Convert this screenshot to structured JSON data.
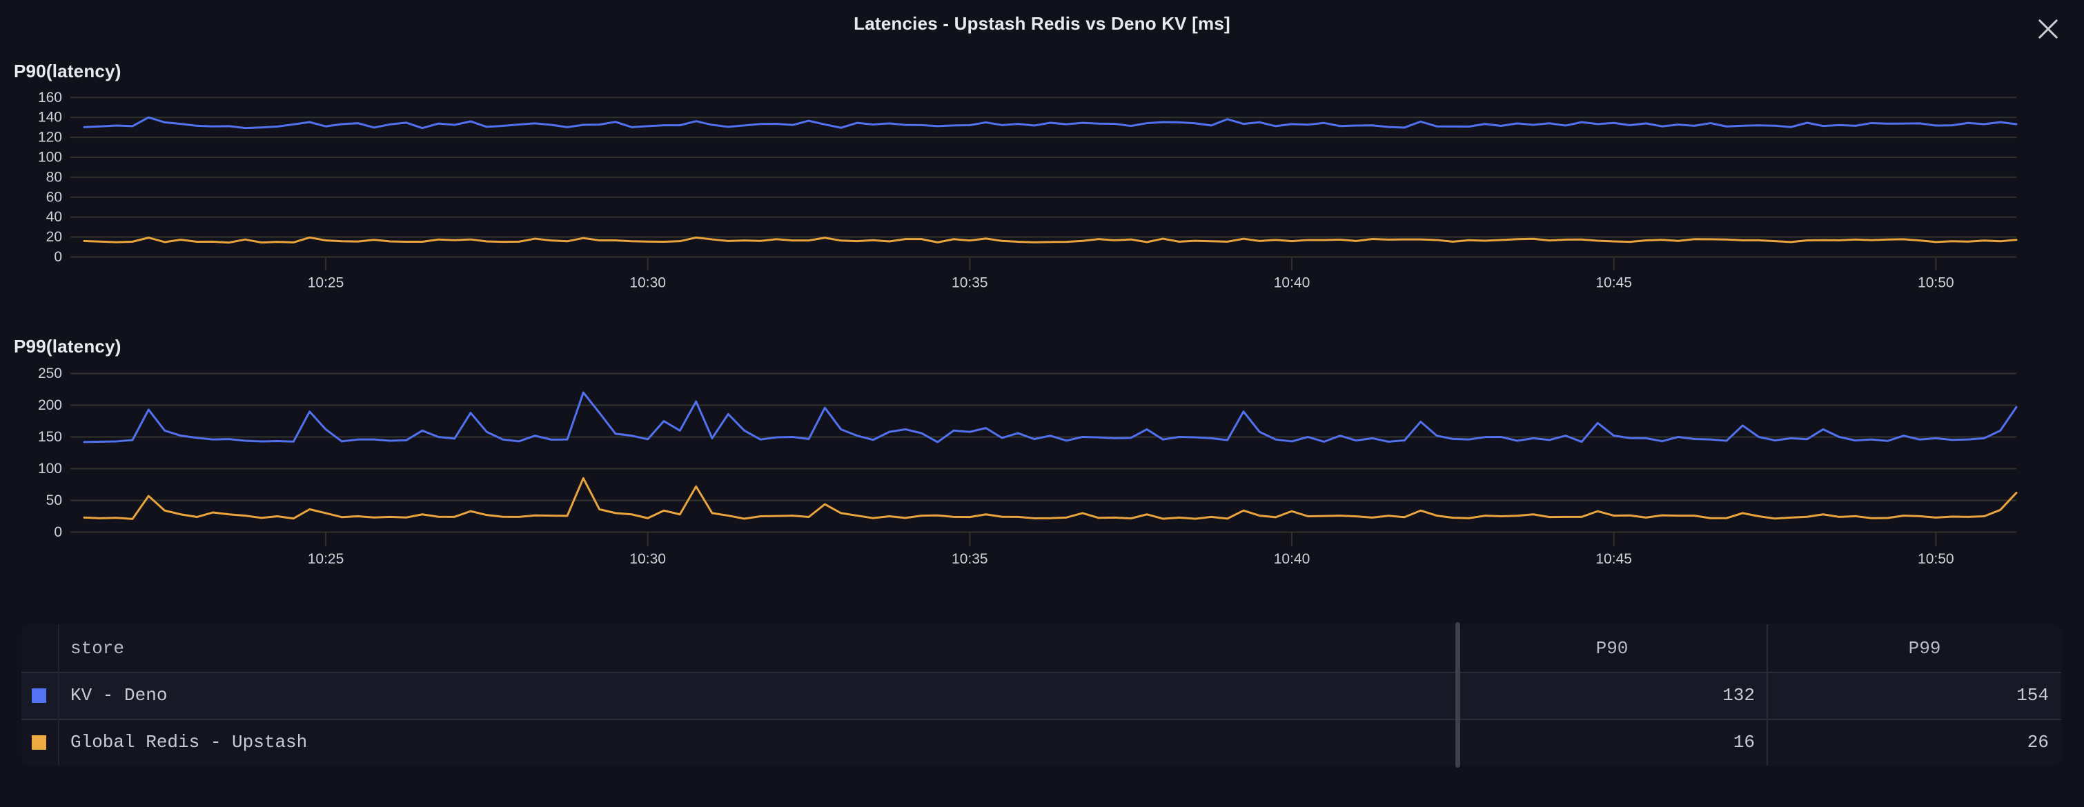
{
  "header": {
    "title": "Latencies - Upstash Redis vs Deno KV [ms]"
  },
  "colors": {
    "background": "#10111b",
    "title_text": "#e8eaf0",
    "axis_label": "#cfd2da",
    "gridline": "#31322c",
    "kv_deno": "#5271ef",
    "redis_upstash": "#e9a43e",
    "kv_deno_swatch": "#5472f4",
    "redis_upstash_swatch": "#eda942",
    "table_text": "#c9ccd3",
    "close_icon": "#c9ccd4"
  },
  "chart_data": [
    {
      "type": "line",
      "title": "P90(latency)",
      "ylim": [
        0,
        160
      ],
      "y_ticks": [
        0,
        20,
        40,
        60,
        80,
        100,
        120,
        140,
        160
      ],
      "x_tick_labels": [
        "10:25",
        "10:30",
        "10:35",
        "10:40",
        "10:45",
        "10:50"
      ],
      "time_start": "10:21:15",
      "time_step_seconds": 15,
      "grid": true,
      "legend_position": "table-below",
      "series": [
        {
          "name": "KV - Deno",
          "color": "#5271ef",
          "values": [
            130.2,
            131,
            131.8,
            131.2,
            140,
            135,
            133.5,
            131.6,
            131,
            131.2,
            129.3,
            129.9,
            130.8,
            133.0,
            135.3,
            131.0,
            133.2,
            134.2,
            129.8,
            133.0,
            134.7,
            129.3,
            133.8,
            132.5,
            136,
            130.5,
            131.5,
            132.9,
            134,
            132.5,
            130.2,
            132.5,
            132.8,
            135.5,
            130.2,
            131.2,
            132.1,
            132.1,
            136.2,
            132.5,
            130.5,
            131.9,
            133.4,
            133.6,
            132.4,
            136.6,
            132.9,
            129.6,
            134.5,
            132.9,
            134,
            132.4,
            132.3,
            131.2,
            131.9,
            132.2,
            135,
            132.3,
            133.5,
            131.8,
            134.6,
            133.1,
            134.5,
            133.7,
            133.6,
            131.4,
            134.2,
            135.3,
            135,
            134.1,
            131.9,
            138.2,
            133.5,
            135.1,
            131.2,
            133.3,
            132.7,
            134.4,
            131.3,
            131.8,
            132,
            130.4,
            129.8,
            135.8,
            131.0,
            130.9,
            130.8,
            133.4,
            131.5,
            134,
            132.5,
            134.1,
            131.8,
            135.2,
            133.3,
            134.4,
            132.2,
            134.0,
            131,
            132.8,
            131.6,
            134.2,
            130.9,
            131.7,
            132,
            131.7,
            130.3,
            134.6,
            131.4,
            132.3,
            131.6,
            134.3,
            133.7,
            133.8,
            134.0,
            131.8,
            132,
            134.4,
            133.2,
            135.2,
            133.2
          ]
        },
        {
          "name": "Global Redis - Upstash",
          "color": "#e9a43e",
          "values": [
            16,
            15.4,
            14.8,
            15.3,
            19.3,
            14.9,
            17.3,
            15.2,
            15.3,
            14.4,
            17.5,
            14.5,
            15.1,
            14.6,
            19.5,
            16.6,
            15.7,
            15.5,
            17.2,
            15.6,
            15.2,
            15.2,
            17.5,
            16.9,
            17.6,
            15.6,
            15.1,
            15.3,
            18.3,
            16.5,
            15.7,
            18.9,
            16.6,
            16.6,
            15.7,
            15.4,
            15.2,
            15.8,
            19.4,
            17.6,
            16,
            16.5,
            16.1,
            17.8,
            16.5,
            16.5,
            19.2,
            16.4,
            15.8,
            16.8,
            15.6,
            17.9,
            17.9,
            14.6,
            17.8,
            16.5,
            18.4,
            16.1,
            15.2,
            14.7,
            15,
            15.1,
            16.1,
            17.9,
            16.7,
            17.6,
            14.9,
            18.3,
            15.3,
            16.2,
            15.7,
            15.3,
            18.2,
            16.0,
            17.1,
            15.8,
            17.0,
            17.0,
            17.4,
            16.0,
            18,
            17.4,
            17.6,
            17.6,
            17.0,
            15.3,
            16.8,
            16.3,
            17.0,
            17.8,
            18.2,
            16.5,
            17.4,
            17.5,
            16.3,
            15.6,
            15.1,
            16.6,
            17.2,
            16.1,
            17.8,
            17.7,
            17.5,
            16.7,
            16.7,
            15.8,
            15.0,
            16.6,
            16.9,
            16.7,
            17.5,
            16.9,
            17.5,
            17.7,
            16.5,
            15,
            15.7,
            15.4,
            16.4,
            15.7,
            17.2
          ]
        }
      ]
    },
    {
      "type": "line",
      "title": "P99(latency)",
      "ylim": [
        0,
        250
      ],
      "y_ticks": [
        0,
        50,
        100,
        150,
        200,
        250
      ],
      "x_tick_labels": [
        "10:25",
        "10:30",
        "10:35",
        "10:40",
        "10:45",
        "10:50"
      ],
      "time_start": "10:21:15",
      "time_step_seconds": 15,
      "grid": true,
      "legend_position": "table-below",
      "series": [
        {
          "name": "KV - Deno",
          "color": "#5271ef",
          "values": [
            142,
            142.5,
            143,
            145.1,
            193,
            160,
            152,
            148.6,
            146,
            146.6,
            144,
            142.9,
            143.5,
            142.6,
            190,
            162,
            143.1,
            146,
            146.1,
            144,
            144.8,
            160,
            150,
            147.4,
            188,
            158,
            146,
            143.1,
            152,
            145.8,
            146,
            220,
            188,
            155,
            152,
            146.4,
            175,
            160,
            206,
            148,
            186,
            160,
            146,
            149.4,
            150,
            146.7,
            196,
            162,
            152,
            145.4,
            158,
            162,
            156,
            141.9,
            160,
            158,
            164,
            148.5,
            156,
            146.6,
            152,
            144.2,
            150,
            149.3,
            148,
            148.5,
            162,
            146.0,
            150,
            149.4,
            148,
            145.1,
            190,
            158,
            146,
            143.0,
            150,
            142.5,
            152,
            144.4,
            148,
            142.5,
            144.6,
            174,
            152,
            146.9,
            146,
            149.8,
            150,
            144.0,
            148,
            145.2,
            152,
            142.3,
            172,
            152,
            148.2,
            148,
            143.3,
            150,
            146.7,
            146,
            144.0,
            168,
            150,
            144.6,
            148,
            146.5,
            162,
            150,
            144.4,
            146,
            143.7,
            152,
            145.9,
            148,
            145.4,
            146,
            148,
            160,
            197
          ]
        },
        {
          "name": "Global Redis - Upstash",
          "color": "#e9a43e",
          "values": [
            23,
            21.9,
            22.5,
            20.8,
            57,
            34,
            28,
            23.9,
            31,
            28,
            26,
            22.5,
            25,
            21.5,
            36,
            30,
            23.7,
            25,
            23.1,
            24,
            23.1,
            28,
            24.2,
            24.1,
            33,
            27,
            24.2,
            24,
            26.4,
            26,
            25.7,
            85,
            36,
            30,
            28,
            22.0,
            34,
            28,
            72,
            30,
            26,
            21.2,
            25,
            25.4,
            26,
            23.9,
            44,
            30,
            26,
            22.1,
            25,
            22.4,
            26,
            26.4,
            24,
            23.8,
            28,
            24.2,
            24,
            21.8,
            22,
            23.0,
            30,
            22.5,
            23,
            21.6,
            28,
            21.1,
            23,
            21.1,
            24,
            21.3,
            34,
            26,
            23.5,
            33,
            25,
            25.4,
            26,
            24.8,
            23,
            25.8,
            23.6,
            34,
            26,
            22.7,
            22,
            25.9,
            25,
            25.8,
            28,
            23.8,
            24,
            24.0,
            33,
            26,
            26.4,
            23,
            26.5,
            26,
            25.9,
            22,
            22.1,
            30,
            25,
            21.4,
            23,
            24.2,
            28,
            24,
            25.2,
            22,
            22.3,
            26,
            25.1,
            23,
            24.5,
            24,
            25,
            35,
            62
          ]
        }
      ]
    }
  ],
  "icons": {
    "close-icon": "✕"
  },
  "table": {
    "columns": [
      {
        "label": "store",
        "align": "left"
      },
      {
        "label": "P90",
        "align": "center"
      },
      {
        "label": "P99",
        "align": "center"
      }
    ],
    "rows": [
      {
        "store": "KV - Deno",
        "swatch_color": "#5472f4",
        "P90": "132",
        "P99": "154"
      },
      {
        "store": "Global Redis - Upstash",
        "swatch_color": "#eda942",
        "P90": "16",
        "P99": "26"
      }
    ]
  }
}
